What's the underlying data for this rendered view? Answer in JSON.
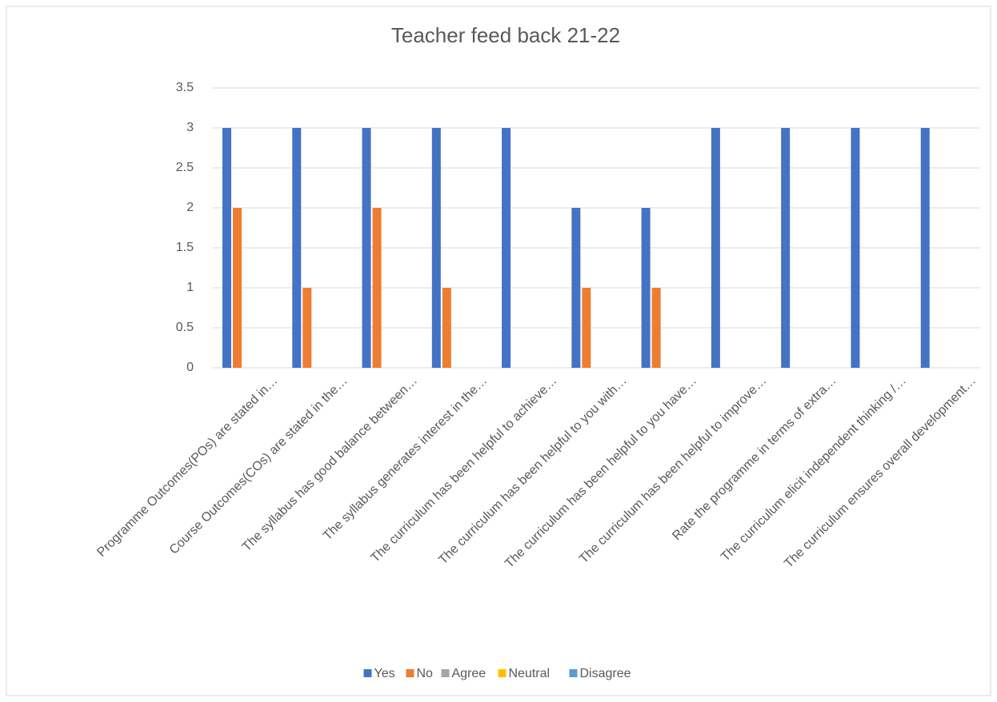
{
  "chart_data": {
    "type": "bar",
    "title": "Teacher feed back 21-22",
    "categories": [
      "Programme Outcomes(POs) are stated in…",
      "Course Outcomes(COs) are stated in the…",
      "The syllabus has good balance between…",
      "The syllabus generates interest in the…",
      "The curriculum has been helpful to achieve…",
      "The curriculum has been helpful to you with…",
      "The curriculum has been helpful to you have…",
      "The curriculum has been helpful to improve…",
      "Rate the programme in terms of extra…",
      "The curriculum elicit independent thinking /…",
      "The curriculum ensures overall development…"
    ],
    "series": [
      {
        "name": "Yes",
        "color": "#4472c4",
        "values": [
          3,
          3,
          3,
          3,
          3,
          2,
          2,
          3,
          3,
          3,
          3
        ]
      },
      {
        "name": "No",
        "color": "#ed7d31",
        "values": [
          2,
          1,
          2,
          1,
          0,
          1,
          1,
          0,
          0,
          0,
          0
        ]
      },
      {
        "name": "Agree",
        "color": "#a5a5a5",
        "values": [
          0,
          0,
          0,
          0,
          0,
          0,
          0,
          0,
          0,
          0,
          0
        ]
      },
      {
        "name": "Neutral",
        "color": "#ffc000",
        "values": [
          0,
          0,
          0,
          0,
          0,
          0,
          0,
          0,
          0,
          0,
          0
        ]
      },
      {
        "name": "Disagree",
        "color": "#5b9bd5",
        "values": [
          0,
          0,
          0,
          0,
          0,
          0,
          0,
          0,
          0,
          0,
          0
        ]
      }
    ],
    "ylim": [
      0,
      3.5
    ],
    "yticks": [
      0,
      0.5,
      1,
      1.5,
      2,
      2.5,
      3,
      3.5
    ],
    "grid": true,
    "legend": "bottom"
  }
}
